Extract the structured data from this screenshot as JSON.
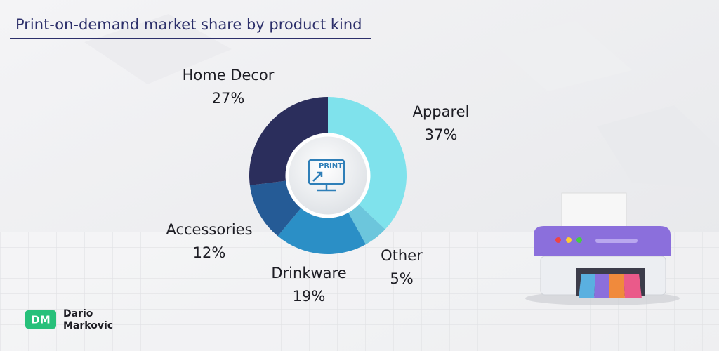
{
  "chart_data": {
    "type": "donut",
    "title": "Print-on-demand market share by product kind",
    "categories": [
      "Apparel",
      "Other",
      "Drinkware",
      "Accessories",
      "Home Decor"
    ],
    "values": [
      37,
      5,
      19,
      12,
      27
    ],
    "value_labels": [
      "37%",
      "5%",
      "19%",
      "12%",
      "27%"
    ],
    "colors": [
      "#7fe2ec",
      "#6cc6dc",
      "#2b8fc6",
      "#255b96",
      "#2b2e5c"
    ],
    "center_label": "PRINT"
  },
  "branding": {
    "initials": "DM",
    "name_line1": "Dario",
    "name_line2": "Markovic"
  }
}
